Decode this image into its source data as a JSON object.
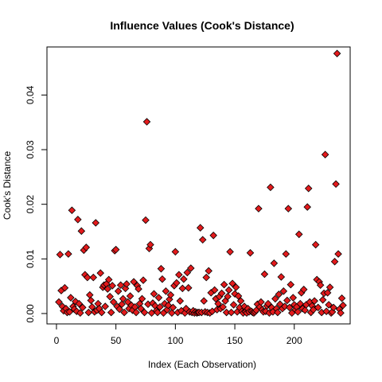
{
  "chart_data": {
    "type": "scatter",
    "title": "Influence Values (Cook's Distance)",
    "xlabel": "Index (Each Observation)",
    "ylabel": "Cook's Distance",
    "xlim": [
      -8,
      247
    ],
    "ylim": [
      -0.0019,
      0.0488
    ],
    "xticks": [
      0,
      50,
      100,
      150,
      200
    ],
    "xtick_labels": [
      "0",
      "50",
      "100",
      "150",
      "200"
    ],
    "yticks": [
      0.0,
      0.01,
      0.02,
      0.03,
      0.04
    ],
    "ytick_labels": [
      "0.00",
      "0.01",
      "0.02",
      "0.03",
      "0.04"
    ],
    "marker": "diamond",
    "marker_fill": "#e31a1c",
    "marker_edge": "#000000",
    "grid": false,
    "points": [
      [
        2,
        0.0021
      ],
      [
        3,
        0.0108
      ],
      [
        4,
        0.0042
      ],
      [
        5,
        0.0013
      ],
      [
        6,
        0.0005
      ],
      [
        7,
        0.0047
      ],
      [
        8,
        0.0009
      ],
      [
        9,
        0.0002
      ],
      [
        10,
        0.0109
      ],
      [
        11,
        0.0003
      ],
      [
        12,
        0.0029
      ],
      [
        13,
        0.0189
      ],
      [
        14,
        0.0013
      ],
      [
        15,
        0.0008
      ],
      [
        16,
        0.0022
      ],
      [
        17,
        0.0004
      ],
      [
        18,
        0.0172
      ],
      [
        19,
        0.0018
      ],
      [
        20,
        0.0001
      ],
      [
        21,
        0.0151
      ],
      [
        22,
        0.0011
      ],
      [
        23,
        0.0116
      ],
      [
        24,
        0.0071
      ],
      [
        25,
        0.0121
      ],
      [
        26,
        0.0066
      ],
      [
        27,
        0.0002
      ],
      [
        28,
        0.0034
      ],
      [
        29,
        0.0024
      ],
      [
        30,
        0.0012
      ],
      [
        31,
        0.0066
      ],
      [
        32,
        0.0003
      ],
      [
        33,
        0.0166
      ],
      [
        34,
        0.0006
      ],
      [
        35,
        0.0018
      ],
      [
        36,
        0.0009
      ],
      [
        37,
        0.0074
      ],
      [
        38,
        0.0002
      ],
      [
        39,
        0.0048
      ],
      [
        40,
        0.0052
      ],
      [
        41,
        0.0013
      ],
      [
        42,
        0.0054
      ],
      [
        43,
        0.0045
      ],
      [
        44,
        0.0062
      ],
      [
        45,
        0.0031
      ],
      [
        46,
        0.0002
      ],
      [
        47,
        0.0051
      ],
      [
        48,
        0.0021
      ],
      [
        49,
        0.0115
      ],
      [
        50,
        0.0117
      ],
      [
        51,
        0.0013
      ],
      [
        52,
        0.0041
      ],
      [
        53,
        0.0008
      ],
      [
        54,
        0.0052
      ],
      [
        55,
        0.0017
      ],
      [
        56,
        0.0027
      ],
      [
        57,
        0.0002
      ],
      [
        58,
        0.0046
      ],
      [
        59,
        0.0054
      ],
      [
        60,
        0.0021
      ],
      [
        61,
        0.0009
      ],
      [
        62,
        0.0032
      ],
      [
        63,
        0.0015
      ],
      [
        64,
        0.0006
      ],
      [
        65,
        0.0058
      ],
      [
        66,
        0.0012
      ],
      [
        67,
        0.0002
      ],
      [
        68,
        0.0051
      ],
      [
        69,
        0.0045
      ],
      [
        70,
        0.0018
      ],
      [
        71,
        0.0009
      ],
      [
        72,
        0.0027
      ],
      [
        73,
        0.0061
      ],
      [
        74,
        0.0002
      ],
      [
        75,
        0.0171
      ],
      [
        76,
        0.0351
      ],
      [
        77,
        0.0017
      ],
      [
        78,
        0.0119
      ],
      [
        79,
        0.0126
      ],
      [
        80,
        0.0001
      ],
      [
        81,
        0.0019
      ],
      [
        82,
        0.0036
      ],
      [
        83,
        0.0014
      ],
      [
        84,
        0.0005
      ],
      [
        85,
        0.0002
      ],
      [
        86,
        0.0029
      ],
      [
        87,
        0.0012
      ],
      [
        88,
        0.0082
      ],
      [
        89,
        0.0063
      ],
      [
        90,
        0.0001
      ],
      [
        91,
        0.0018
      ],
      [
        92,
        0.0041
      ],
      [
        93,
        0.0007
      ],
      [
        94,
        0.0015
      ],
      [
        95,
        0.0026
      ],
      [
        96,
        0.0034
      ],
      [
        97,
        0.0001
      ],
      [
        98,
        0.0011
      ],
      [
        99,
        0.0051
      ],
      [
        100,
        0.0113
      ],
      [
        101,
        0.0056
      ],
      [
        102,
        0.0002
      ],
      [
        103,
        0.0071
      ],
      [
        104,
        0.0023
      ],
      [
        105,
        0.0005
      ],
      [
        106,
        0.0046
      ],
      [
        107,
        0.0063
      ],
      [
        108,
        0.0001
      ],
      [
        109,
        0.0009
      ],
      [
        110,
        0.0075
      ],
      [
        111,
        0.0047
      ],
      [
        112,
        0.0003
      ],
      [
        113,
        0.0083
      ],
      [
        114,
        0.0002
      ],
      [
        115,
        0.0005
      ],
      [
        116,
        0.0001
      ],
      [
        117,
        0.0003
      ],
      [
        118,
        0.0001
      ],
      [
        119,
        0.0002
      ],
      [
        120,
        0.0002
      ],
      [
        121,
        0.0157
      ],
      [
        122,
        0.0002
      ],
      [
        123,
        0.0135
      ],
      [
        124,
        0.0023
      ],
      [
        125,
        0.0003
      ],
      [
        126,
        0.0066
      ],
      [
        127,
        0.0002
      ],
      [
        128,
        0.0078
      ],
      [
        129,
        0.0001
      ],
      [
        130,
        0.0038
      ],
      [
        131,
        0.0004
      ],
      [
        132,
        0.0143
      ],
      [
        133,
        0.0043
      ],
      [
        134,
        0.0027
      ],
      [
        135,
        0.0007
      ],
      [
        136,
        0.0018
      ],
      [
        137,
        0.0031
      ],
      [
        138,
        0.0009
      ],
      [
        139,
        0.0037
      ],
      [
        140,
        0.0012
      ],
      [
        141,
        0.0053
      ],
      [
        142,
        0.0023
      ],
      [
        143,
        0.0002
      ],
      [
        144,
        0.0031
      ],
      [
        145,
        0.0043
      ],
      [
        146,
        0.0113
      ],
      [
        147,
        0.0002
      ],
      [
        148,
        0.0055
      ],
      [
        149,
        0.0016
      ],
      [
        150,
        0.0036
      ],
      [
        151,
        0.0048
      ],
      [
        152,
        0.0003
      ],
      [
        153,
        0.0032
      ],
      [
        154,
        0.0011
      ],
      [
        155,
        0.0023
      ],
      [
        156,
        0.0004
      ],
      [
        157,
        0.0001
      ],
      [
        158,
        0.0013
      ],
      [
        159,
        0.0003
      ],
      [
        160,
        0.0001
      ],
      [
        161,
        0.0009
      ],
      [
        162,
        0.0003
      ],
      [
        163,
        0.0111
      ],
      [
        164,
        0.0004
      ],
      [
        165,
        0.0002
      ],
      [
        166,
        0.0001
      ],
      [
        167,
        0.0003
      ],
      [
        168,
        0.0006
      ],
      [
        169,
        0.0017
      ],
      [
        170,
        0.0192
      ],
      [
        171,
        0.0012
      ],
      [
        172,
        0.0021
      ],
      [
        173,
        0.0007
      ],
      [
        174,
        0.0003
      ],
      [
        175,
        0.0072
      ],
      [
        176,
        0.0004
      ],
      [
        177,
        0.0014
      ],
      [
        178,
        0.0018
      ],
      [
        179,
        0.0001
      ],
      [
        180,
        0.0231
      ],
      [
        181,
        0.0011
      ],
      [
        182,
        0.0003
      ],
      [
        183,
        0.0092
      ],
      [
        184,
        0.0027
      ],
      [
        185,
        0.0009
      ],
      [
        186,
        0.0002
      ],
      [
        187,
        0.0035
      ],
      [
        188,
        0.0017
      ],
      [
        189,
        0.0067
      ],
      [
        190,
        0.0009
      ],
      [
        191,
        0.0041
      ],
      [
        192,
        0.0013
      ],
      [
        193,
        0.0109
      ],
      [
        194,
        0.0024
      ],
      [
        195,
        0.0192
      ],
      [
        196,
        0.0011
      ],
      [
        197,
        0.0053
      ],
      [
        198,
        0.0001
      ],
      [
        199,
        0.0029
      ],
      [
        200,
        0.0016
      ],
      [
        201,
        0.0007
      ],
      [
        202,
        0.0012
      ],
      [
        203,
        0.0003
      ],
      [
        204,
        0.0145
      ],
      [
        205,
        0.0018
      ],
      [
        206,
        0.0038
      ],
      [
        207,
        0.0009
      ],
      [
        208,
        0.0044
      ],
      [
        209,
        0.0006
      ],
      [
        210,
        0.0016
      ],
      [
        211,
        0.0195
      ],
      [
        212,
        0.0229
      ],
      [
        213,
        0.0021
      ],
      [
        214,
        0.0002
      ],
      [
        215,
        0.0014
      ],
      [
        216,
        0.0007
      ],
      [
        217,
        0.0023
      ],
      [
        218,
        0.0126
      ],
      [
        219,
        0.0062
      ],
      [
        220,
        0.0011
      ],
      [
        221,
        0.0058
      ],
      [
        222,
        0.0052
      ],
      [
        223,
        0.0002
      ],
      [
        224,
        0.0025
      ],
      [
        225,
        0.0037
      ],
      [
        226,
        0.0291
      ],
      [
        227,
        0.0004
      ],
      [
        228,
        0.0038
      ],
      [
        229,
        0.0016
      ],
      [
        230,
        0.0048
      ],
      [
        231,
        0.0001
      ],
      [
        232,
        0.0003
      ],
      [
        233,
        0.0011
      ],
      [
        234,
        0.0095
      ],
      [
        235,
        0.0237
      ],
      [
        236,
        0.0476
      ],
      [
        237,
        0.0109
      ],
      [
        238,
        0.0008
      ],
      [
        239,
        0.0001
      ],
      [
        240,
        0.0028
      ],
      [
        241,
        0.0015
      ]
    ]
  }
}
